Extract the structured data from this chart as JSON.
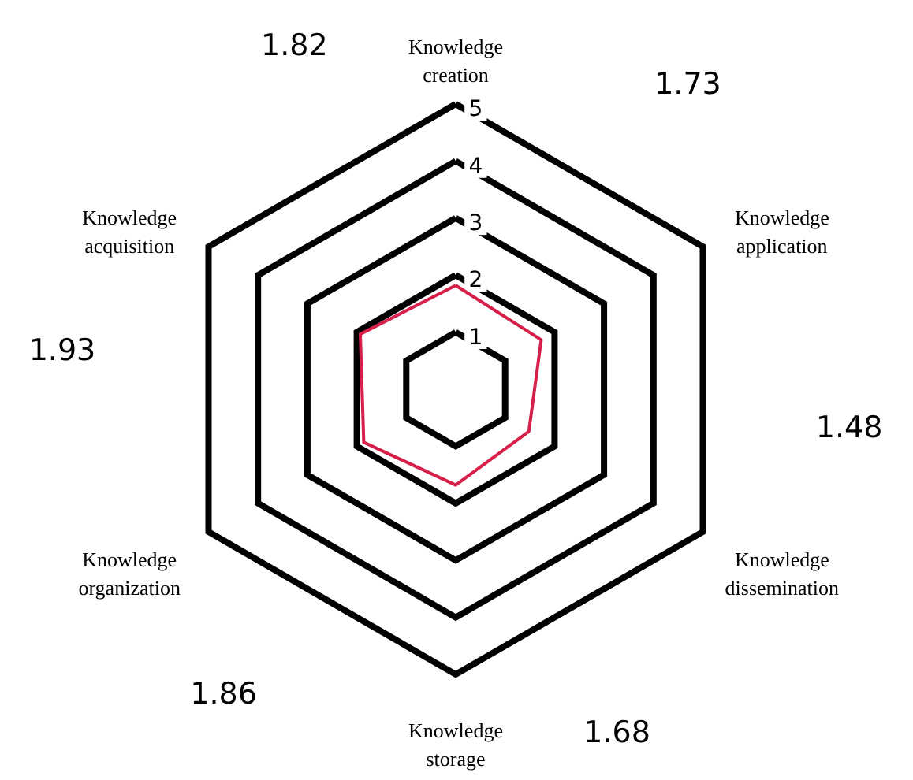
{
  "chart_data": {
    "type": "radar",
    "categories": [
      "Knowledge creation",
      "Knowledge application",
      "Knowledge dissemination",
      "Knowledge storage",
      "Knowledge organization",
      "Knowledge acquisition"
    ],
    "series": [
      {
        "color": "#d6204a",
        "values": [
          1.82,
          1.73,
          1.48,
          1.68,
          1.86,
          1.93
        ]
      }
    ],
    "value_labels": [
      "1.82",
      "1.73",
      "1.48",
      "1.68",
      "1.86",
      "1.93"
    ],
    "ylim": [
      0,
      5
    ],
    "yticks": [
      1,
      2,
      3,
      4,
      5
    ],
    "grid": true
  }
}
